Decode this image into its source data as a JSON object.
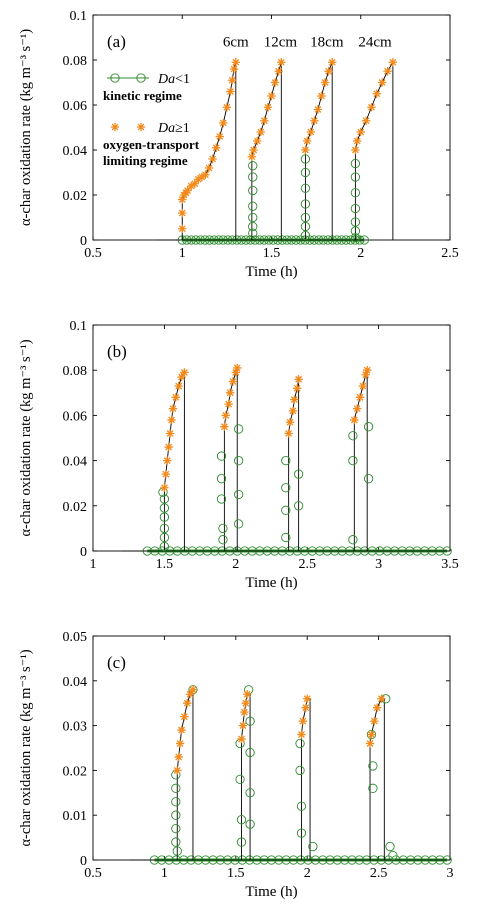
{
  "colors": {
    "kinetic": "#2e8b2e",
    "transport": "#f28a1c",
    "trace": "#000000",
    "axis": "#000000"
  },
  "chart_data": [
    {
      "type": "scatter",
      "panel_label": "(a)",
      "ylabel": "α-char oxidation rate (kg m⁻³ s⁻¹)",
      "xlabel": "Time (h)",
      "xlim": [
        0.5,
        2.5
      ],
      "ylim": [
        0,
        0.1
      ],
      "xticks": [
        "0.5",
        "1",
        "1.5",
        "2",
        "2.5"
      ],
      "yticks": [
        "0",
        "0.02",
        "0.04",
        "0.06",
        "0.08",
        "0.1"
      ],
      "grid": false,
      "legend": {
        "placement": "top-left",
        "entries": [
          {
            "series": "kinetic",
            "label_italic": "Da",
            "label_rest": "<1",
            "desc": "kinetic regime"
          },
          {
            "series": "transport",
            "label_italic": "Da",
            "label_rest": "≥1",
            "desc": "oxygen-transport limiting regime",
            "desc_lines": [
              "oxygen-transport",
              "limiting regime"
            ]
          }
        ]
      },
      "annotations": [
        {
          "text": "6cm",
          "x": 1.3,
          "y": 0.086
        },
        {
          "text": "12cm",
          "x": 1.55,
          "y": 0.086
        },
        {
          "text": "18cm",
          "x": 1.81,
          "y": 0.086
        },
        {
          "text": "24cm",
          "x": 2.08,
          "y": 0.086
        }
      ],
      "base_range": [
        1.0,
        2.02
      ],
      "peaks": [
        {
          "orange": [
            [
              1.0,
              0.005
            ],
            [
              1.0,
              0.012
            ],
            [
              1.0,
              0.018
            ],
            [
              1.01,
              0.02
            ],
            [
              1.02,
              0.021
            ],
            [
              1.03,
              0.022
            ],
            [
              1.05,
              0.024
            ],
            [
              1.07,
              0.025
            ],
            [
              1.09,
              0.027
            ],
            [
              1.11,
              0.028
            ],
            [
              1.13,
              0.029
            ],
            [
              1.15,
              0.032
            ],
            [
              1.17,
              0.036
            ],
            [
              1.19,
              0.041
            ],
            [
              1.21,
              0.046
            ],
            [
              1.23,
              0.052
            ],
            [
              1.25,
              0.059
            ],
            [
              1.27,
              0.066
            ],
            [
              1.28,
              0.071
            ],
            [
              1.29,
              0.076
            ],
            [
              1.3,
              0.079
            ]
          ],
          "green": [],
          "drop_x": 1.3,
          "line_end": 0.0
        },
        {
          "orange": [
            [
              1.39,
              0.037
            ],
            [
              1.4,
              0.04
            ],
            [
              1.42,
              0.044
            ],
            [
              1.44,
              0.048
            ],
            [
              1.46,
              0.053
            ],
            [
              1.48,
              0.059
            ],
            [
              1.5,
              0.064
            ],
            [
              1.52,
              0.07
            ],
            [
              1.54,
              0.075
            ],
            [
              1.555,
              0.079
            ]
          ],
          "green": [
            [
              1.395,
              0.033
            ],
            [
              1.395,
              0.028
            ],
            [
              1.395,
              0.022
            ],
            [
              1.395,
              0.015
            ],
            [
              1.395,
              0.01
            ],
            [
              1.395,
              0.006
            ],
            [
              1.395,
              0.003
            ]
          ],
          "drop_x": 1.555,
          "line_end": 0.0
        },
        {
          "orange": [
            [
              1.69,
              0.04
            ],
            [
              1.7,
              0.044
            ],
            [
              1.72,
              0.048
            ],
            [
              1.74,
              0.053
            ],
            [
              1.76,
              0.058
            ],
            [
              1.78,
              0.064
            ],
            [
              1.8,
              0.07
            ],
            [
              1.82,
              0.075
            ],
            [
              1.84,
              0.079
            ]
          ],
          "green": [
            [
              1.69,
              0.036
            ],
            [
              1.69,
              0.03
            ],
            [
              1.69,
              0.023
            ],
            [
              1.69,
              0.016
            ],
            [
              1.69,
              0.01
            ],
            [
              1.69,
              0.006
            ],
            [
              1.69,
              0.002
            ]
          ],
          "drop_x": 1.84,
          "line_end": 0.0
        },
        {
          "orange": [
            [
              1.97,
              0.04
            ],
            [
              1.98,
              0.044
            ],
            [
              2.0,
              0.048
            ],
            [
              2.03,
              0.053
            ],
            [
              2.06,
              0.059
            ],
            [
              2.09,
              0.065
            ],
            [
              2.12,
              0.07
            ],
            [
              2.15,
              0.075
            ],
            [
              2.18,
              0.079
            ]
          ],
          "green": [
            [
              1.97,
              0.034
            ],
            [
              1.97,
              0.028
            ],
            [
              1.97,
              0.021
            ],
            [
              1.97,
              0.014
            ],
            [
              1.97,
              0.008
            ],
            [
              1.97,
              0.004
            ],
            [
              1.97,
              0.001
            ]
          ],
          "drop_x": 2.18,
          "line_end": 0.0
        }
      ]
    },
    {
      "type": "scatter",
      "panel_label": "(b)",
      "ylabel": "α-char oxidation rate (kg m⁻³ s⁻¹)",
      "xlabel": "Time (h)",
      "xlim": [
        1,
        3.5
      ],
      "ylim": [
        0,
        0.1
      ],
      "xticks": [
        "1",
        "1.5",
        "2",
        "2.5",
        "3",
        "3.5"
      ],
      "yticks": [
        "0",
        "0.02",
        "0.04",
        "0.06",
        "0.08",
        "0.1"
      ],
      "grid": false,
      "base_range": [
        1.38,
        3.48
      ],
      "peaks": [
        {
          "orange": [
            [
              1.5,
              0.028
            ],
            [
              1.51,
              0.034
            ],
            [
              1.52,
              0.04
            ],
            [
              1.53,
              0.046
            ],
            [
              1.54,
              0.052
            ],
            [
              1.55,
              0.058
            ],
            [
              1.56,
              0.063
            ],
            [
              1.58,
              0.068
            ],
            [
              1.6,
              0.073
            ],
            [
              1.62,
              0.077
            ],
            [
              1.64,
              0.079
            ]
          ],
          "green": [
            [
              1.49,
              0.026
            ],
            [
              1.5,
              0.023
            ],
            [
              1.5,
              0.019
            ],
            [
              1.5,
              0.015
            ],
            [
              1.5,
              0.01
            ],
            [
              1.5,
              0.006
            ],
            [
              1.5,
              0.002
            ]
          ],
          "drop_x": 1.64,
          "line_end": 0.0
        },
        {
          "orange": [
            [
              1.92,
              0.055
            ],
            [
              1.93,
              0.06
            ],
            [
              1.95,
              0.065
            ],
            [
              1.96,
              0.07
            ],
            [
              1.98,
              0.075
            ],
            [
              2.0,
              0.079
            ],
            [
              2.01,
              0.081
            ]
          ],
          "green": [
            [
              1.9,
              0.042
            ],
            [
              1.9,
              0.032
            ],
            [
              1.9,
              0.023
            ],
            [
              1.91,
              0.01
            ],
            [
              1.91,
              0.005
            ],
            [
              2.02,
              0.054
            ],
            [
              2.02,
              0.04
            ],
            [
              2.02,
              0.025
            ],
            [
              2.02,
              0.012
            ]
          ],
          "drop_x": 2.01,
          "line_end": 0.0
        },
        {
          "orange": [
            [
              2.37,
              0.052
            ],
            [
              2.38,
              0.057
            ],
            [
              2.4,
              0.062
            ],
            [
              2.41,
              0.067
            ],
            [
              2.43,
              0.072
            ],
            [
              2.44,
              0.076
            ]
          ],
          "green": [
            [
              2.35,
              0.04
            ],
            [
              2.35,
              0.028
            ],
            [
              2.35,
              0.018
            ],
            [
              2.35,
              0.006
            ],
            [
              2.44,
              0.034
            ],
            [
              2.44,
              0.02
            ]
          ],
          "drop_x": 2.44,
          "line_end": 0.0
        },
        {
          "orange": [
            [
              2.83,
              0.058
            ],
            [
              2.85,
              0.063
            ],
            [
              2.87,
              0.068
            ],
            [
              2.89,
              0.073
            ],
            [
              2.91,
              0.078
            ],
            [
              2.92,
              0.08
            ]
          ],
          "green": [
            [
              2.82,
              0.051
            ],
            [
              2.82,
              0.04
            ],
            [
              2.82,
              0.005
            ],
            [
              2.93,
              0.055
            ],
            [
              2.93,
              0.032
            ]
          ],
          "drop_x": 2.92,
          "line_end": 0.0
        }
      ]
    },
    {
      "type": "scatter",
      "panel_label": "(c)",
      "ylabel": "α-char oxidation rate (kg m⁻³ s⁻¹)",
      "xlabel": "Time (h)",
      "xlim": [
        0.5,
        3
      ],
      "ylim": [
        0,
        0.05
      ],
      "xticks": [
        "0.5",
        "1",
        "1.5",
        "2",
        "2.5",
        "3"
      ],
      "yticks": [
        "0",
        "0.01",
        "0.02",
        "0.03",
        "0.04",
        "0.05"
      ],
      "grid": false,
      "base_range": [
        0.93,
        2.98
      ],
      "peaks": [
        {
          "orange": [
            [
              1.09,
              0.02
            ],
            [
              1.1,
              0.023
            ],
            [
              1.11,
              0.026
            ],
            [
              1.12,
              0.029
            ],
            [
              1.14,
              0.032
            ],
            [
              1.16,
              0.035
            ],
            [
              1.18,
              0.037
            ],
            [
              1.2,
              0.038
            ]
          ],
          "green": [
            [
              1.08,
              0.019
            ],
            [
              1.08,
              0.016
            ],
            [
              1.08,
              0.013
            ],
            [
              1.08,
              0.01
            ],
            [
              1.08,
              0.007
            ],
            [
              1.08,
              0.004
            ],
            [
              1.09,
              0.002
            ],
            [
              1.2,
              0.038
            ]
          ],
          "drop_x": 1.2,
          "line_end": 0.0
        },
        {
          "orange": [
            [
              1.54,
              0.027
            ],
            [
              1.55,
              0.03
            ],
            [
              1.56,
              0.033
            ],
            [
              1.57,
              0.035
            ],
            [
              1.58,
              0.037
            ]
          ],
          "green": [
            [
              1.53,
              0.026
            ],
            [
              1.53,
              0.018
            ],
            [
              1.54,
              0.009
            ],
            [
              1.54,
              0.004
            ],
            [
              1.59,
              0.038
            ],
            [
              1.6,
              0.031
            ],
            [
              1.6,
              0.024
            ],
            [
              1.6,
              0.015
            ],
            [
              1.6,
              0.008
            ]
          ],
          "drop_x": 1.6,
          "line_end": 0.0
        },
        {
          "orange": [
            [
              1.96,
              0.028
            ],
            [
              1.97,
              0.031
            ],
            [
              1.99,
              0.034
            ],
            [
              2.0,
              0.036
            ]
          ],
          "green": [
            [
              1.95,
              0.026
            ],
            [
              1.95,
              0.02
            ],
            [
              1.96,
              0.012
            ],
            [
              1.96,
              0.006
            ],
            [
              2.04,
              0.003
            ]
          ],
          "drop_x": 2.02,
          "line_end": 0.0
        },
        {
          "orange": [
            [
              2.44,
              0.026
            ],
            [
              2.45,
              0.028
            ],
            [
              2.47,
              0.031
            ],
            [
              2.49,
              0.034
            ],
            [
              2.52,
              0.036
            ]
          ],
          "green": [
            [
              2.45,
              0.028
            ],
            [
              2.46,
              0.021
            ],
            [
              2.46,
              0.016
            ],
            [
              2.55,
              0.036
            ],
            [
              2.58,
              0.003
            ],
            [
              2.6,
              0.001
            ]
          ],
          "drop_x": 2.54,
          "line_end": 0.0
        }
      ]
    }
  ]
}
